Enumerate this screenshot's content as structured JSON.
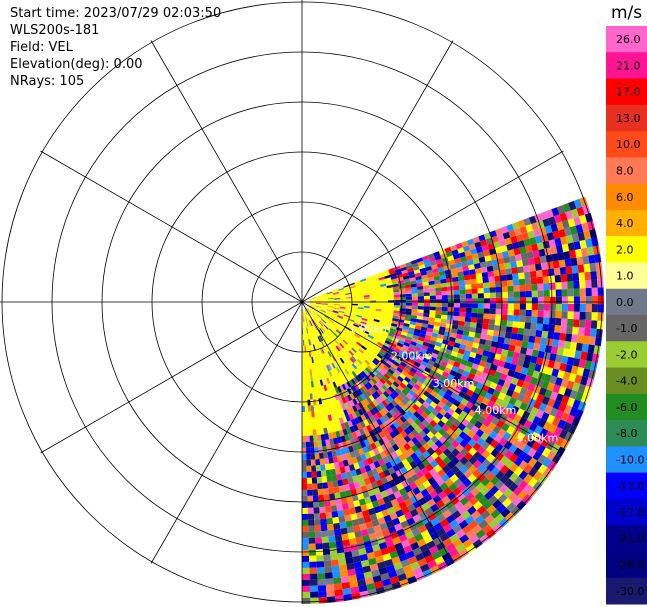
{
  "header": {
    "start_time": "Start time: 2023/07/29 02:03:50",
    "instrument": "WLS200s-181",
    "field": "Field: VEL",
    "elevation": "Elevation(deg): 0.00",
    "nrays": "NRays: 105"
  },
  "chart_data": {
    "type": "heatmap",
    "projection": "polar-ppi",
    "field": "VEL",
    "unit": "m/s",
    "sector_azimuth_deg": [
      90,
      180
    ],
    "sector_azimuth_upper_deg": 70,
    "range_rings_km": [
      "1.00km",
      "2.00km",
      "3.00km",
      "4.00km",
      "5.00km"
    ],
    "colorbar": {
      "unit": "m/s",
      "ticks": [
        "26.0",
        "21.0",
        "17.0",
        "13.0",
        "10.0",
        "8.0",
        "6.0",
        "4.0",
        "2.0",
        "1.0",
        "0.0",
        "-1.0",
        "-2.0",
        "-4.0",
        "-6.0",
        "-8.0",
        "-10.0",
        "-13.0",
        "-17.0",
        "-21.0",
        "-26.0",
        "-30.0"
      ],
      "colors": [
        "#ff66cc",
        "#ff1493",
        "#ff0000",
        "#e83020",
        "#ff4a1a",
        "#ff7a55",
        "#ff8c00",
        "#ffb000",
        "#ffff00",
        "#ffff99",
        "#6e7a8a",
        "#666666",
        "#9acd32",
        "#6b8e23",
        "#228b22",
        "#2e8b57",
        "#1e90ff",
        "#0000ff",
        "#0000cd",
        "#00008b",
        "#000080",
        "#191970"
      ]
    },
    "near_field_color": "#ffff00"
  }
}
